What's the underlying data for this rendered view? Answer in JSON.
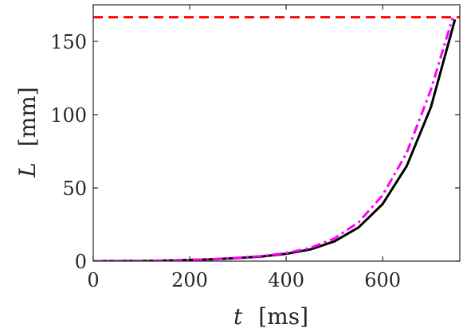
{
  "chart_data": {
    "type": "line",
    "title": "",
    "xlabel_var": "t",
    "xlabel_unit": "[ms]",
    "ylabel_var": "L",
    "ylabel_unit": "[mm]",
    "xlim": [
      0,
      760
    ],
    "ylim": [
      0,
      175
    ],
    "xticks": [
      0,
      200,
      400,
      600
    ],
    "yticks": [
      0,
      50,
      100,
      150
    ],
    "grid": false,
    "series": [
      {
        "style": "solid",
        "color": "#000000",
        "x": [
          0,
          50,
          100,
          150,
          200,
          250,
          300,
          350,
          400,
          450,
          500,
          550,
          600,
          650,
          700,
          750
        ],
        "y": [
          0,
          0.05,
          0.15,
          0.4,
          0.8,
          1.3,
          2.1,
          3.2,
          5.0,
          8.0,
          13.5,
          23.0,
          39.0,
          65.0,
          105.0,
          165.0
        ]
      },
      {
        "style": "dash-dot",
        "color": "#ff00ff",
        "x": [
          0,
          50,
          100,
          150,
          200,
          250,
          300,
          350,
          400,
          450,
          500,
          550,
          600,
          650,
          700,
          745
        ],
        "y": [
          0,
          0.05,
          0.15,
          0.4,
          0.8,
          1.4,
          2.3,
          3.5,
          5.5,
          9.0,
          15.5,
          26.5,
          45.0,
          74.0,
          117.0,
          166.0
        ]
      },
      {
        "style": "dashed",
        "color": "#ff0000",
        "x": [
          0,
          760
        ],
        "y": [
          166.5,
          166.5
        ]
      }
    ]
  }
}
